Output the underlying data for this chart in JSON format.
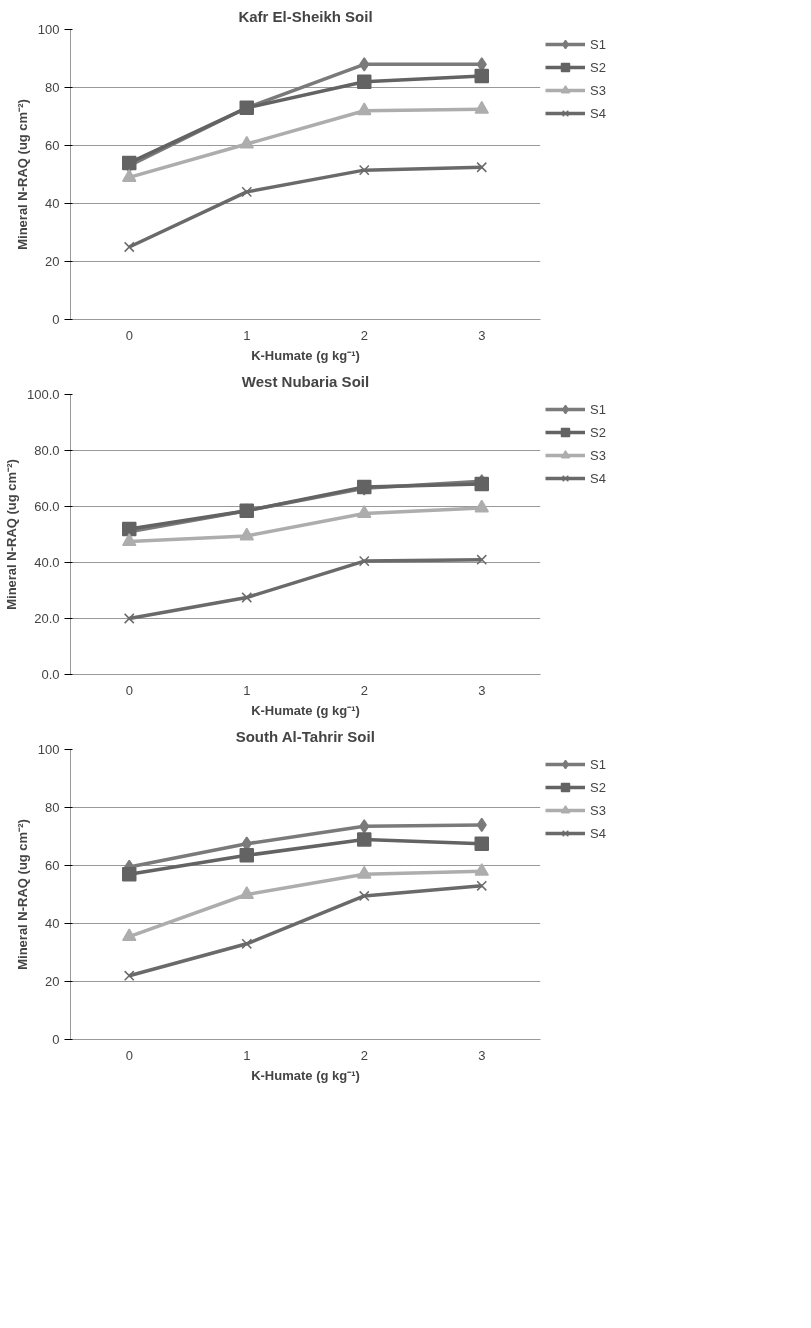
{
  "chart_data": [
    {
      "type": "line",
      "title": "Kafr El-Sheikh Soil",
      "xlabel": "K-Humate (g kg⁻¹)",
      "ylabel": "Mineral N-RAQ (ug cm⁻²)",
      "categories": [
        "0",
        "1",
        "2",
        "3"
      ],
      "ylim": [
        0,
        100
      ],
      "yticks": [
        0,
        20,
        40,
        60,
        80,
        100
      ],
      "grid": "y",
      "legend": "right",
      "series": [
        {
          "name": "S1",
          "color": "#7a7a7a",
          "marker": "diamond",
          "values": [
            53,
            73,
            88,
            88
          ]
        },
        {
          "name": "S2",
          "color": "#636363",
          "marker": "square",
          "values": [
            54,
            73,
            82,
            84
          ]
        },
        {
          "name": "S3",
          "color": "#adadad",
          "marker": "triangle",
          "values": [
            49,
            60.5,
            72,
            72.5
          ]
        },
        {
          "name": "S4",
          "color": "#6a6a6a",
          "marker": "cross",
          "values": [
            25,
            44,
            51.5,
            52.5
          ]
        }
      ]
    },
    {
      "type": "line",
      "title": "West Nubaria Soil",
      "xlabel": "K-Humate (g kg⁻¹)",
      "ylabel": "Mineral N-RAQ (ug cm⁻²)",
      "categories": [
        "0",
        "1",
        "2",
        "3"
      ],
      "ylim": [
        0,
        100
      ],
      "yticks": [
        {
          "value": 0,
          "label": "0.0"
        },
        {
          "value": 20,
          "label": "20.0"
        },
        {
          "value": 40,
          "label": "40.0"
        },
        {
          "value": 60,
          "label": "60.0"
        },
        {
          "value": 80,
          "label": "80.0"
        },
        {
          "value": 100,
          "label": "100.0"
        }
      ],
      "grid": "y",
      "legend": "right",
      "series": [
        {
          "name": "S1",
          "color": "#7a7a7a",
          "marker": "diamond",
          "values": [
            51,
            58.5,
            66.5,
            69
          ]
        },
        {
          "name": "S2",
          "color": "#636363",
          "marker": "square",
          "values": [
            52,
            58.5,
            67,
            68
          ]
        },
        {
          "name": "S3",
          "color": "#adadad",
          "marker": "triangle",
          "values": [
            47.5,
            49.5,
            57.5,
            59.5
          ]
        },
        {
          "name": "S4",
          "color": "#6a6a6a",
          "marker": "cross",
          "values": [
            20,
            27.5,
            40.5,
            41
          ]
        }
      ]
    },
    {
      "type": "line",
      "title": "South Al-Tahrir Soil",
      "xlabel": "K-Humate (g kg⁻¹)",
      "ylabel": "Mineral N-RAQ (ug cm⁻²)",
      "categories": [
        "0",
        "1",
        "2",
        "3"
      ],
      "ylim": [
        0,
        100
      ],
      "yticks": [
        0,
        20,
        40,
        60,
        80,
        100
      ],
      "grid": "y",
      "legend": "right",
      "series": [
        {
          "name": "S1",
          "color": "#7a7a7a",
          "marker": "diamond",
          "values": [
            59.5,
            67.5,
            73.5,
            74
          ]
        },
        {
          "name": "S2",
          "color": "#636363",
          "marker": "square",
          "values": [
            57,
            63.5,
            69,
            67.5
          ]
        },
        {
          "name": "S3",
          "color": "#adadad",
          "marker": "triangle",
          "values": [
            35.5,
            50,
            57,
            58
          ]
        },
        {
          "name": "S4",
          "color": "#6a6a6a",
          "marker": "cross",
          "values": [
            22,
            33,
            49.5,
            53
          ]
        }
      ]
    }
  ]
}
